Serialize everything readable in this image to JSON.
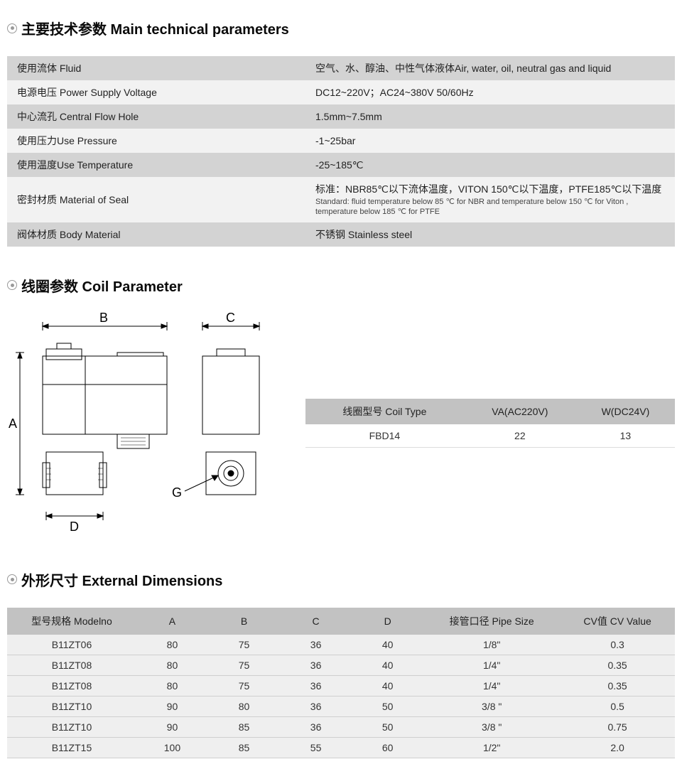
{
  "sections": {
    "main_params": "主要技术参数 Main technical parameters",
    "coil_params": "线圈参数 Coil Parameter",
    "ext_dims": "外形尺寸 External Dimensions"
  },
  "params": {
    "rows": [
      {
        "label": "使用流体 Fluid",
        "value": "空气、水、醇油、中性气体液体Air, water, oil, neutral gas and liquid"
      },
      {
        "label": "电源电压 Power Supply Voltage",
        "value": "DC12~220V；AC24~380V 50/60Hz"
      },
      {
        "label": "中心流孔 Central Flow Hole",
        "value": "1.5mm~7.5mm"
      },
      {
        "label": "使用压力Use Pressure",
        "value": "-1~25bar"
      },
      {
        "label": "使用温度Use Temperature",
        "value": "-25~185℃"
      },
      {
        "label": "密封材质 Material of Seal",
        "value": "标准：NBR85℃以下流体温度，VITON 150℃以下温度，PTFE185℃以下温度",
        "sub": "Standard: fluid temperature below 85 ℃ for NBR and temperature below 150 ℃ for Viton , temperature below 185 ℃ for PTFE"
      },
      {
        "label": "阀体材质 Body Material",
        "value": "不锈钢 Stainless steel"
      }
    ]
  },
  "coil": {
    "headers": [
      "线圈型号 Coil Type",
      "VA(AC220V)",
      "W(DC24V)"
    ],
    "row": [
      "FBD14",
      "22",
      "13"
    ]
  },
  "diagram_labels": {
    "A": "A",
    "B": "B",
    "C": "C",
    "D": "D",
    "G": "G"
  },
  "dims": {
    "headers": [
      "型号规格 Modelno",
      "A",
      "B",
      "C",
      "D",
      "接管口径 Pipe Size",
      "CV值 CV Value"
    ],
    "col_widths": [
      "180px",
      "100px",
      "100px",
      "100px",
      "100px",
      "190px",
      "160px"
    ],
    "rows": [
      [
        "B11ZT06",
        "80",
        "75",
        "36",
        "40",
        "1/8\"",
        "0.3"
      ],
      [
        "B11ZT08",
        "80",
        "75",
        "36",
        "40",
        "1/4\"",
        "0.35"
      ],
      [
        "B11ZT08",
        "80",
        "75",
        "36",
        "40",
        "1/4\"",
        "0.35"
      ],
      [
        "B11ZT10",
        "90",
        "80",
        "36",
        "50",
        "3/8 \"",
        "0.5"
      ],
      [
        "B11ZT10",
        "90",
        "85",
        "36",
        "50",
        "3/8 \"",
        "0.75"
      ],
      [
        "B11ZT15",
        "100",
        "85",
        "55",
        "60",
        "1/2\"",
        "2.0"
      ]
    ]
  },
  "colors": {
    "header_bg": "#c2c2c2",
    "row_odd": "#d3d3d3",
    "row_even": "#f2f2f2",
    "dim_row": "#efefef",
    "text": "#333333"
  }
}
